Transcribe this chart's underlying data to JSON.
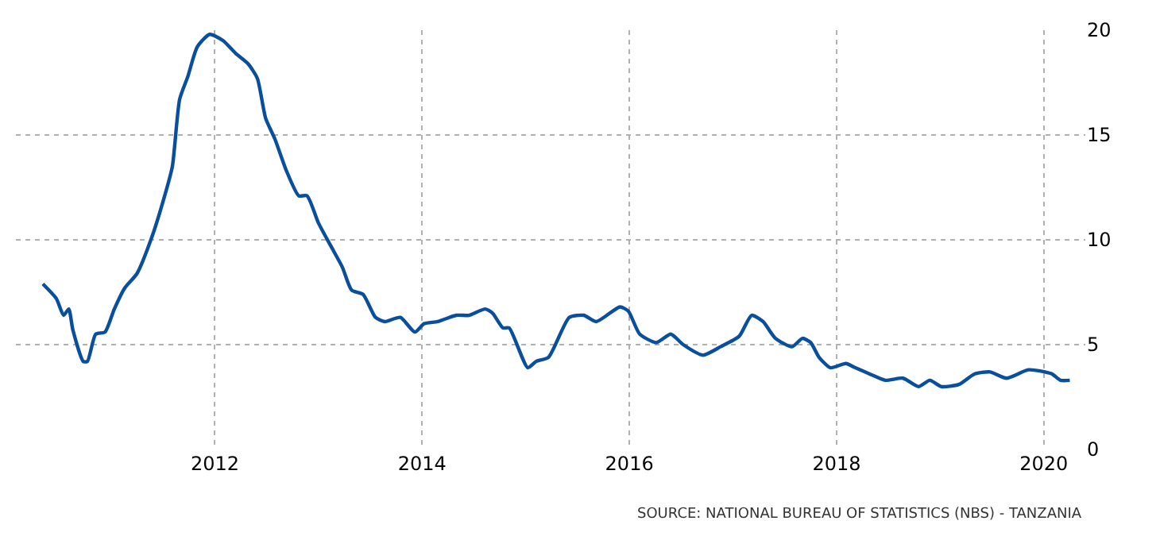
{
  "chart_data": {
    "type": "line",
    "x": [
      2010.34,
      2010.47,
      2010.54,
      2010.59,
      2010.63,
      2010.73,
      2010.77,
      2010.85,
      2010.94,
      2011.03,
      2011.13,
      2011.25,
      2011.39,
      2011.51,
      2011.59,
      2011.66,
      2011.74,
      2011.83,
      2011.95,
      2012.08,
      2012.2,
      2012.32,
      2012.41,
      2012.49,
      2012.58,
      2012.69,
      2012.81,
      2012.89,
      2013.0,
      2013.12,
      2013.23,
      2013.32,
      2013.43,
      2013.55,
      2013.64,
      2013.79,
      2013.93,
      2014.02,
      2014.15,
      2014.33,
      2014.45,
      2014.61,
      2014.68,
      2014.78,
      2014.84,
      2015.02,
      2015.1,
      2015.22,
      2015.42,
      2015.56,
      2015.68,
      2015.91,
      2015.99,
      2016.1,
      2016.26,
      2016.4,
      2016.52,
      2016.71,
      2016.88,
      2017.06,
      2017.18,
      2017.29,
      2017.41,
      2017.57,
      2017.67,
      2017.75,
      2017.83,
      2017.94,
      2018.09,
      2018.18,
      2018.32,
      2018.47,
      2018.64,
      2018.79,
      2018.9,
      2019.01,
      2019.18,
      2019.33,
      2019.48,
      2019.64,
      2019.85,
      2020.01,
      2020.08,
      2020.16,
      2020.25
    ],
    "series": [
      {
        "color": "#0a4f9e",
        "values": [
          7.9,
          7.2,
          6.4,
          6.7,
          5.7,
          4.2,
          4.2,
          5.5,
          5.6,
          6.7,
          7.7,
          8.4,
          10.1,
          12.0,
          13.5,
          16.7,
          17.8,
          19.2,
          19.8,
          19.5,
          18.9,
          18.4,
          17.7,
          15.8,
          14.8,
          13.3,
          12.1,
          12.1,
          10.8,
          9.7,
          8.7,
          7.6,
          7.4,
          6.3,
          6.1,
          6.3,
          5.6,
          6.0,
          6.1,
          6.4,
          6.4,
          6.7,
          6.5,
          5.8,
          5.8,
          3.9,
          4.2,
          4.4,
          6.3,
          6.4,
          6.1,
          6.8,
          6.6,
          5.5,
          5.1,
          5.5,
          5.0,
          4.5,
          4.9,
          5.4,
          6.4,
          6.1,
          5.3,
          4.9,
          5.3,
          5.1,
          4.4,
          3.9,
          4.1,
          3.9,
          3.6,
          3.3,
          3.4,
          3.0,
          3.3,
          3.0,
          3.1,
          3.6,
          3.7,
          3.4,
          3.8,
          3.7,
          3.6,
          3.3,
          3.3
        ]
      }
    ],
    "xlim": [
      2010.08,
      2020.4
    ],
    "xticks": [
      2012,
      2014,
      2016,
      2018,
      2020
    ],
    "ylim": [
      0,
      20
    ],
    "yticks": [
      0,
      5,
      10,
      15,
      20
    ],
    "grid": true,
    "line_style": "solid",
    "marker": "none",
    "annotations": [
      "SOURCE: NATIONAL BUREAU OF STATISTICS (NBS) - TANZANIA"
    ]
  }
}
